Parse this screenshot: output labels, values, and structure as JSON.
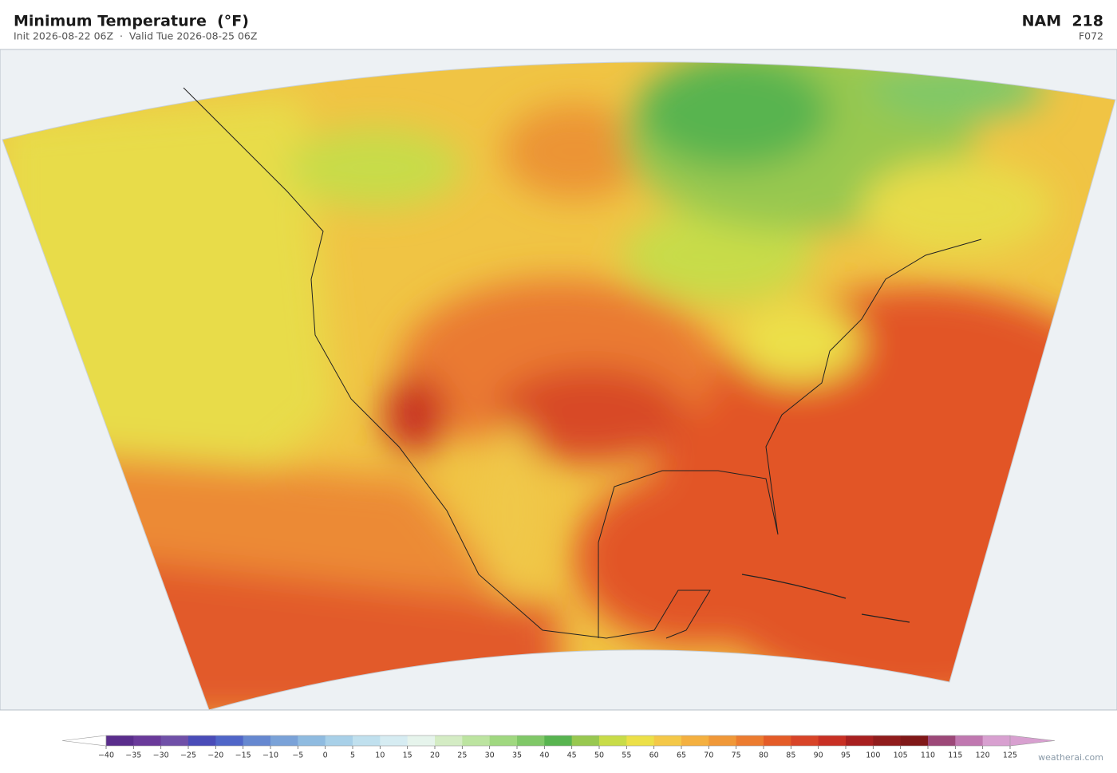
{
  "header": {
    "title": "Minimum Temperature  (°F)",
    "subtitle": "Init 2026-08-22 06Z  ·  Valid Tue 2026-08-25 06Z",
    "model": "NAM  218",
    "forecast_hour": "F072"
  },
  "colorbar": {
    "ticks": [
      {
        "value": -40,
        "label": "−40"
      },
      {
        "value": -35,
        "label": "−35"
      },
      {
        "value": -30,
        "label": "−30"
      },
      {
        "value": -25,
        "label": "−25"
      },
      {
        "value": -20,
        "label": "−20"
      },
      {
        "value": -15,
        "label": "−15"
      },
      {
        "value": -10,
        "label": "−10"
      },
      {
        "value": -5,
        "label": "−5"
      },
      0,
      5,
      10,
      15,
      20,
      25,
      30,
      35,
      40,
      45,
      50,
      55,
      60,
      65,
      70,
      75,
      80,
      85,
      90,
      95,
      100,
      105,
      110,
      115,
      120,
      125
    ],
    "colors": [
      "#5a2d8c",
      "#6a3a9a",
      "#7050a8",
      "#4a4cb8",
      "#5066c8",
      "#6688d0",
      "#7aa2d8",
      "#8fbbe0",
      "#a8d0e8",
      "#c0e0ee",
      "#d6ecf2",
      "#e6f4ec",
      "#d4ecc4",
      "#bce4a0",
      "#a0d880",
      "#80c868",
      "#58b450",
      "#98c850",
      "#c8dc48",
      "#ece048",
      "#f4c848",
      "#f4b040",
      "#f09838",
      "#ec7c30",
      "#e45c28",
      "#d84428",
      "#c83024",
      "#a82020",
      "#901c1c",
      "#801818",
      "#9c4878",
      "#c078b0",
      "#d8a0d0"
    ],
    "under_color": "#ffffff",
    "over_color": "#d8a0d0"
  },
  "watermark": "weatherai.com"
}
